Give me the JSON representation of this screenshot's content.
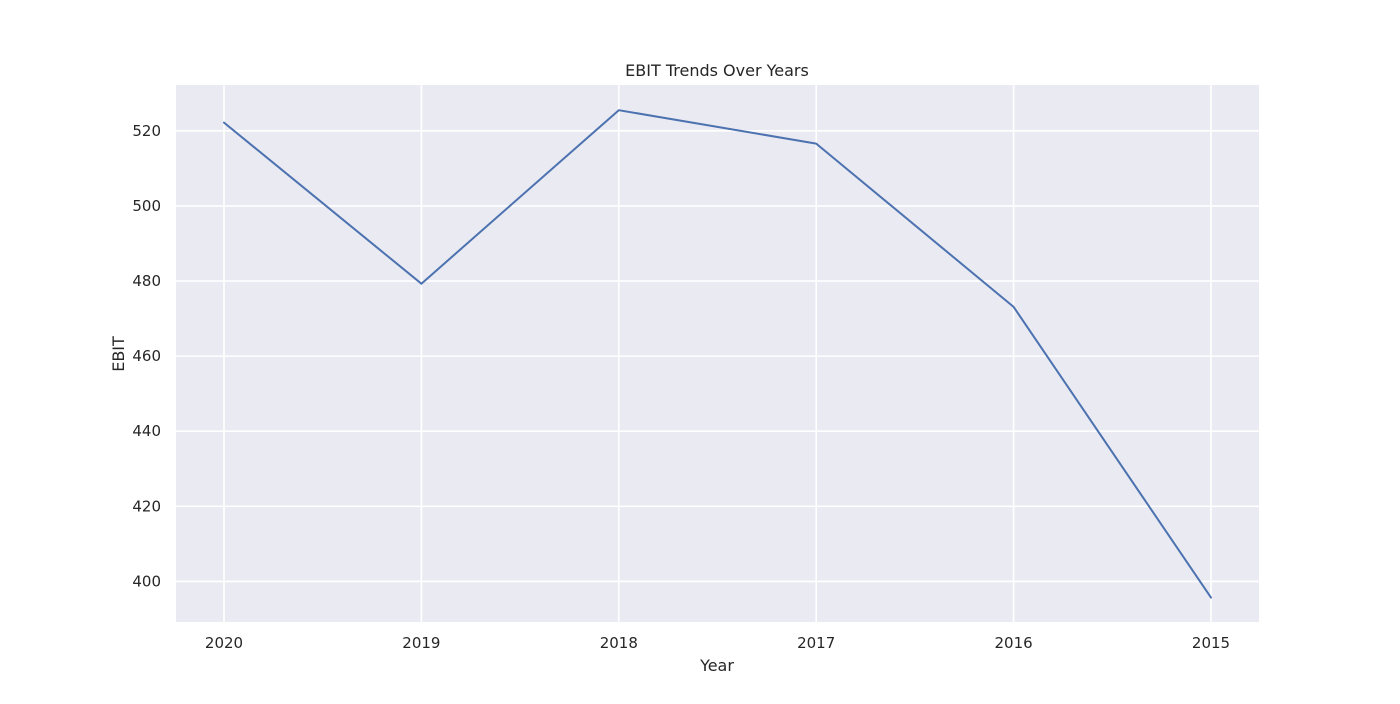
{
  "chart_data": {
    "type": "line",
    "title": "EBIT Trends Over Years",
    "xlabel": "Year",
    "ylabel": "EBIT",
    "categories": [
      "2020",
      "2019",
      "2018",
      "2017",
      "2016",
      "2015"
    ],
    "series": [
      {
        "values": [
          522.2,
          479.3,
          525.5,
          516.6,
          473.1,
          395.7
        ],
        "color": "#4c72b0"
      }
    ],
    "ylim": [
      389.2,
      532.2
    ],
    "yticks": [
      400,
      420,
      440,
      460,
      480,
      500,
      520
    ],
    "grid": true,
    "style": {
      "plot_background": "#eaeaf2",
      "grid_color": "#ffffff",
      "text_color": "#262626"
    }
  }
}
